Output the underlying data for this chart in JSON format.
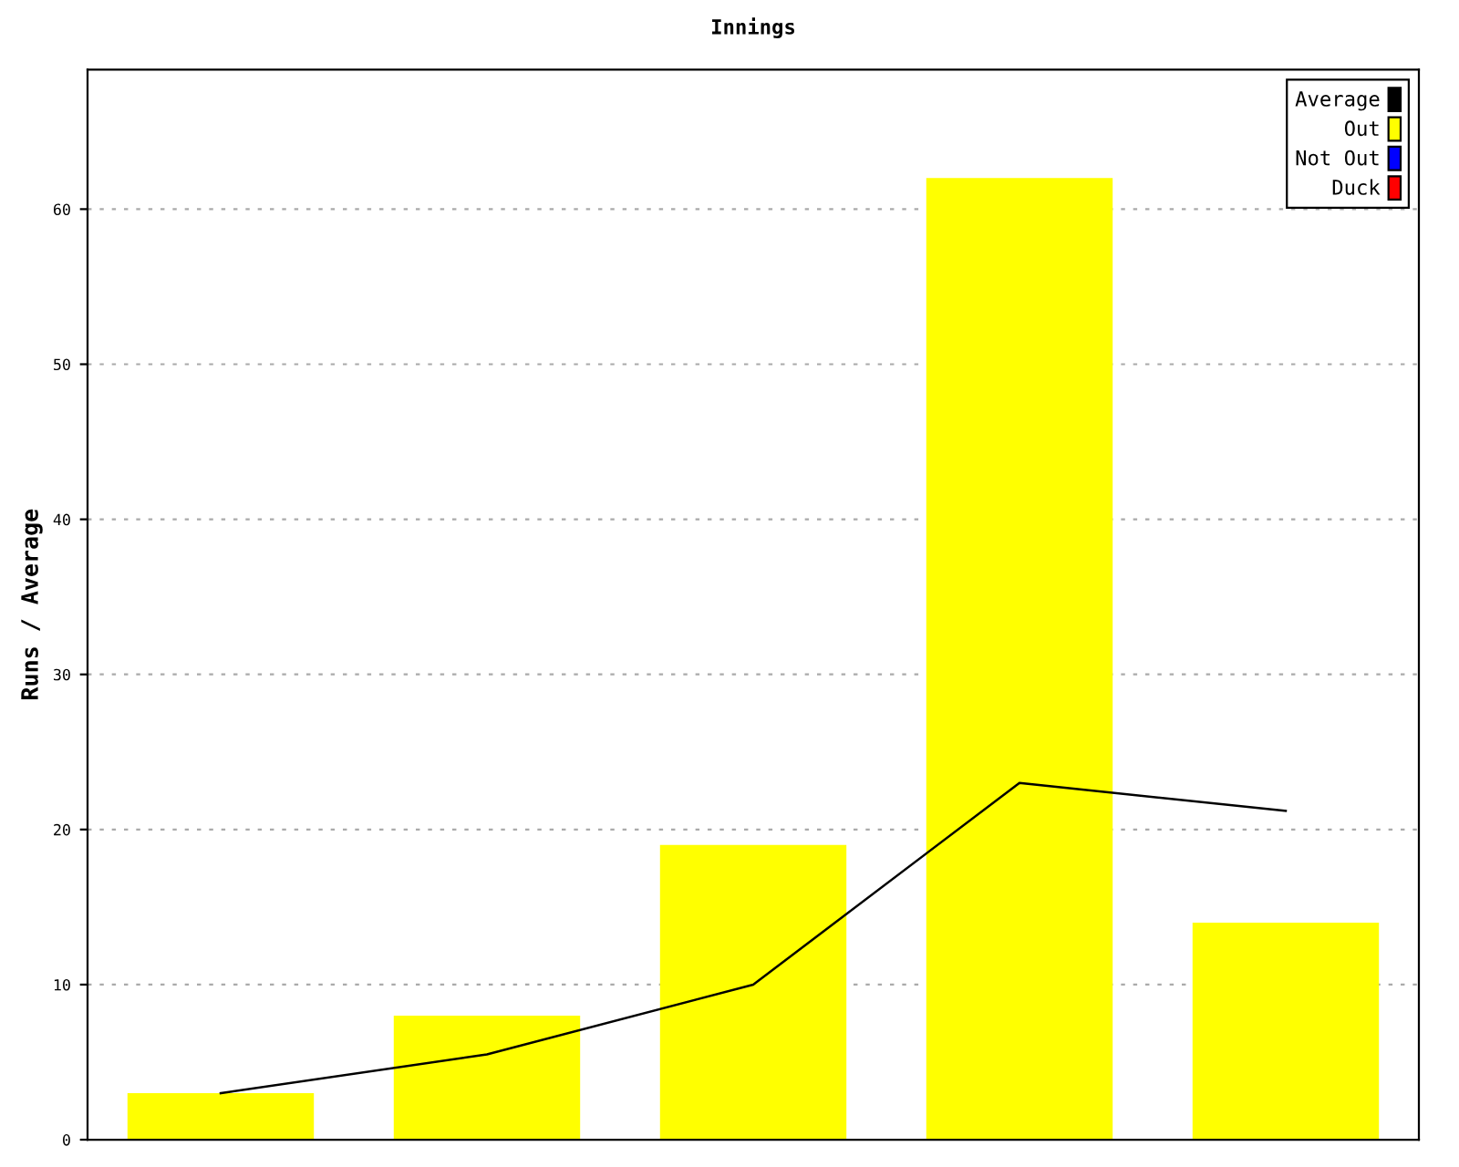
{
  "chart_data": {
    "type": "bar",
    "title": "Innings",
    "ylabel": "Runs / Average",
    "categories": [
      null,
      null,
      null,
      null,
      null
    ],
    "series": [
      {
        "name": "Average",
        "type": "line",
        "color": "#000000",
        "values": [
          3,
          5.5,
          10,
          23,
          21.2
        ]
      },
      {
        "name": "Out",
        "color": "#ffff00",
        "values": [
          3,
          8,
          19,
          62,
          14
        ]
      },
      {
        "name": "Not Out",
        "color": "#0000ff",
        "values": [
          null,
          null,
          null,
          null,
          null
        ]
      },
      {
        "name": "Duck",
        "color": "#ff0000",
        "values": [
          null,
          null,
          null,
          null,
          null
        ]
      }
    ],
    "ylim": [
      0,
      69
    ],
    "yticks": [
      0,
      10,
      20,
      30,
      40,
      50,
      60
    ],
    "grid": "y",
    "legend": "top right",
    "marker": "none",
    "line_style": "solid"
  }
}
